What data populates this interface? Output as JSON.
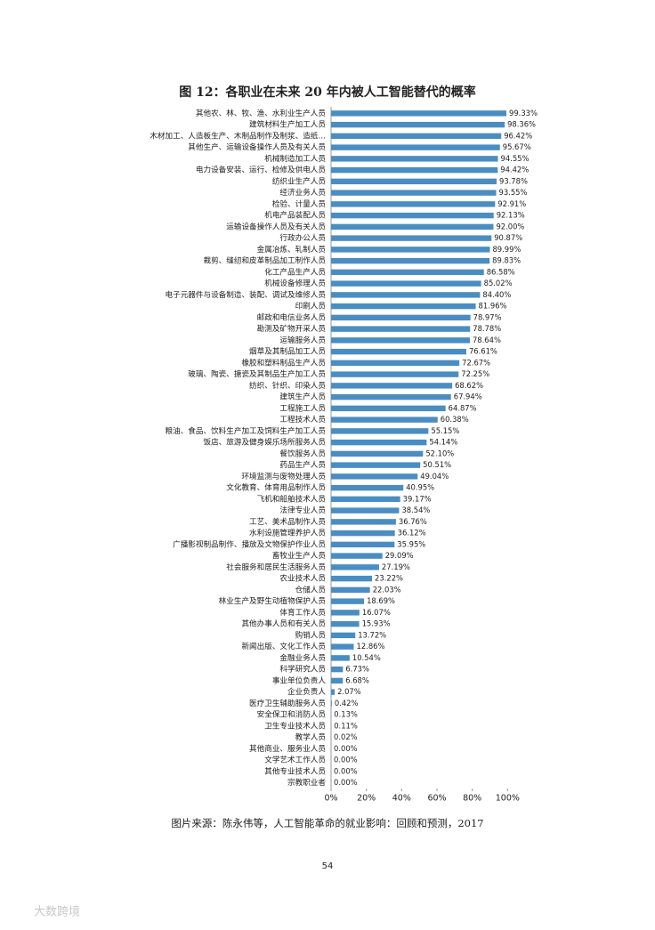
{
  "chart_data": {
    "type": "bar",
    "orientation": "horizontal",
    "title": "图 12：各职业在未来 20 年内被人工智能替代的概率",
    "categories": [
      "其他农、林、牧、渔、水利业生产人员",
      "建筑材料生产加工人员",
      "木材加工、人造板生产、木制品制作及制浆、造纸…",
      "其他生产、运输设备操作人员及有关人员",
      "机械制造加工人员",
      "电力设备安装、运行、检修及供电人员",
      "纺织业生产人员",
      "经济业务人员",
      "检验、计量人员",
      "机电产品装配人员",
      "运输设备操作人员及有关人员",
      "行政办公人员",
      "金属冶炼、轧制人员",
      "裁剪、缝纫和皮革制品加工制作人员",
      "化工产品生产人员",
      "机械设备修理人员",
      "电子元器件与设备制造、装配、调试及维修人员",
      "印刷人员",
      "邮政和电信业务人员",
      "勘测及矿物开采人员",
      "运输服务人员",
      "烟草及其制品加工人员",
      "橡胶和塑料制品生产人员",
      "玻璃、陶瓷、搪瓷及其制品生产加工人员",
      "纺织、针织、印染人员",
      "建筑生产人员",
      "工程施工人员",
      "工程技术人员",
      "粮油、食品、饮料生产加工及饲料生产加工人员",
      "饭店、旅游及健身娱乐场所服务人员",
      "餐饮服务人员",
      "药品生产人员",
      "环境监测与废物处理人员",
      "文化教育、体育用品制作人员",
      "飞机和船舶技术人员",
      "法律专业人员",
      "工艺、美术品制作人员",
      "水利设施管理养护人员",
      "广播影视制品制作、播放及文物保护作业人员",
      "畜牧业生产人员",
      "社会服务和居民生活服务人员",
      "农业技术人员",
      "仓储人员",
      "林业生产及野生动植物保护人员",
      "体育工作人员",
      "其他办事人员和有关人员",
      "购销人员",
      "新闻出版、文化工作人员",
      "金融业务人员",
      "科学研究人员",
      "事业单位负责人",
      "企业负责人",
      "医疗卫生辅助服务人员",
      "安全保卫和消防人员",
      "卫生专业技术人员",
      "教学人员",
      "其他商业、服务业人员",
      "文学艺术工作人员",
      "其他专业技术人员",
      "宗教职业者"
    ],
    "values": [
      99.33,
      98.36,
      96.42,
      95.67,
      94.55,
      94.42,
      93.78,
      93.55,
      92.91,
      92.13,
      92.0,
      90.87,
      89.99,
      89.83,
      86.58,
      85.02,
      84.4,
      81.96,
      78.97,
      78.78,
      78.64,
      76.61,
      72.67,
      72.25,
      68.62,
      67.94,
      64.87,
      60.38,
      55.15,
      54.14,
      52.1,
      50.51,
      49.04,
      40.95,
      39.17,
      38.54,
      36.76,
      36.12,
      35.95,
      29.09,
      27.19,
      23.22,
      22.03,
      18.69,
      16.07,
      15.93,
      13.72,
      12.86,
      10.54,
      6.73,
      6.68,
      2.07,
      0.42,
      0.13,
      0.11,
      0.02,
      0,
      0,
      0,
      0
    ],
    "value_labels": [
      "99.33%",
      "98.36%",
      "96.42%",
      "95.67%",
      "94.55%",
      "94.42%",
      "93.78%",
      "93.55%",
      "92.91%",
      "92.13%",
      "92.00%",
      "90.87%",
      "89.99%",
      "89.83%",
      "86.58%",
      "85.02%",
      "84.40%",
      "81.96%",
      "78.97%",
      "78.78%",
      "78.64%",
      "76.61%",
      "72.67%",
      "72.25%",
      "68.62%",
      "67.94%",
      "64.87%",
      "60.38%",
      "55.15%",
      "54.14%",
      "52.10%",
      "50.51%",
      "49.04%",
      "40.95%",
      "39.17%",
      "38.54%",
      "36.76%",
      "36.12%",
      "35.95%",
      "29.09%",
      "27.19%",
      "23.22%",
      "22.03%",
      "18.69%",
      "16.07%",
      "15.93%",
      "13.72%",
      "12.86%",
      "10.54%",
      "6.73%",
      "6.68%",
      "2.07%",
      "0.42%",
      "0.13%",
      "0.11%",
      "0.02%",
      "0.00%",
      "0.00%",
      "0.00%",
      "0.00%"
    ],
    "color": "#4a8dc2",
    "xlim": [
      0,
      120
    ],
    "xticks": [
      {
        "value": 0,
        "label": "0%"
      },
      {
        "value": 20,
        "label": "20%"
      },
      {
        "value": 40,
        "label": "40%"
      },
      {
        "value": 60,
        "label": "60%"
      },
      {
        "value": 80,
        "label": "80%"
      },
      {
        "value": 100,
        "label": "100%"
      }
    ]
  },
  "source": "图片来源：陈永伟等，人工智能革命的就业影响：回顾和预测，2017",
  "page_number": "54",
  "watermark": "大数跨境"
}
